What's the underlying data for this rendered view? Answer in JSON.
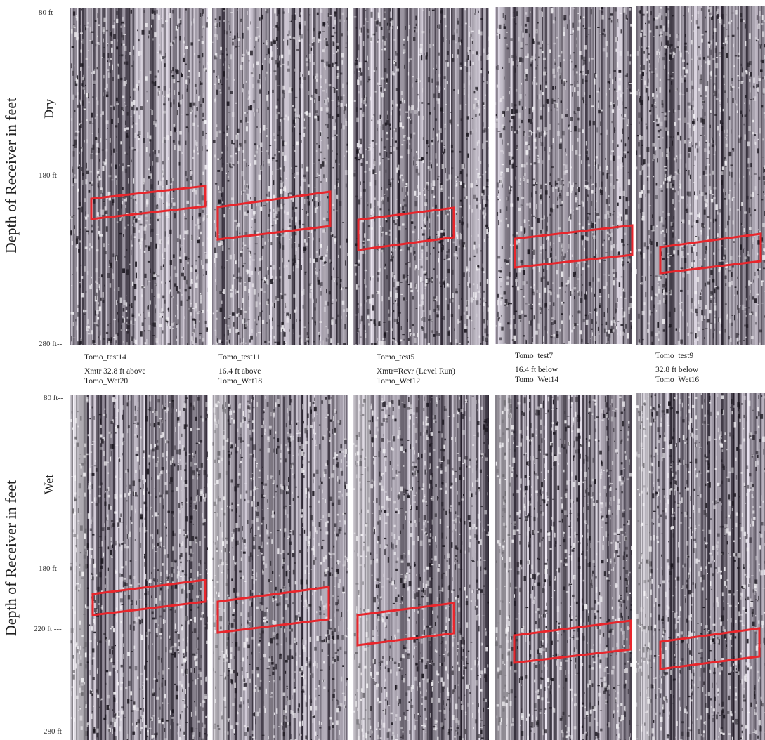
{
  "y_axis_label": "Depth of Receiver in feet",
  "rows": [
    {
      "condition": "Dry",
      "ticks": [
        "80 ft--",
        "180 ft --",
        "280 ft--"
      ],
      "panels": [
        {
          "test": "Tomo_test14",
          "offset": "Xmtr 32.8 ft above",
          "pair": "Tomo_Wet20"
        },
        {
          "test": "Tomo_test11",
          "offset": "16.4 ft above",
          "pair": "Tomo_Wet18"
        },
        {
          "test": "Tomo_test5",
          "offset": "Xmtr=Rcvr (Level Run)",
          "pair": "Tomo_Wet12"
        },
        {
          "test": "Tomo_test7",
          "offset": "16.4 ft below",
          "pair": "Tomo_Wet14"
        },
        {
          "test": "Tomo_test9",
          "offset": "32.8 ft below",
          "pair": "Tomo_Wet16"
        }
      ]
    },
    {
      "condition": "Wet",
      "ticks": [
        "80 ft--",
        "180 ft --",
        "220 ft ---",
        "280 ft--"
      ]
    }
  ],
  "colors": {
    "highlight": "#e8262c",
    "trace_dark": "#2a2530",
    "trace_light": "#e2dee6"
  }
}
